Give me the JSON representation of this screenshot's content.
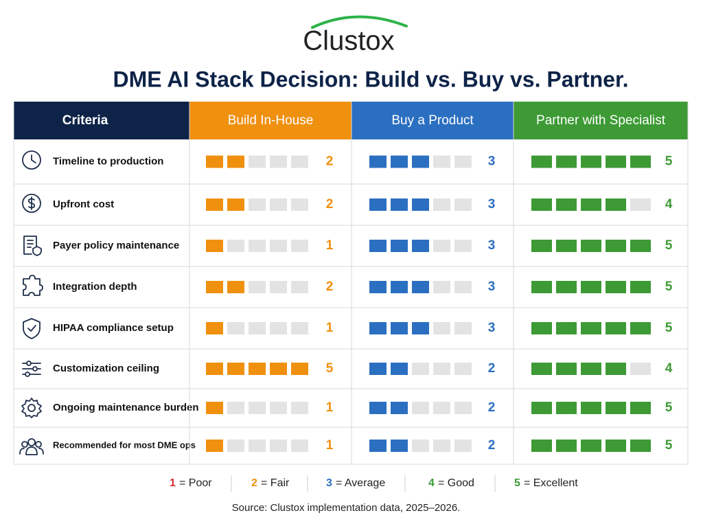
{
  "logo": "Clustox",
  "title": "DME AI Stack Decision: Build vs. Buy vs. Partner.",
  "table": {
    "headers": [
      "Criteria",
      "Build In-House",
      "Buy a Product",
      "Partner with Specialist"
    ],
    "colors": [
      "#0e2348",
      "#f0900f",
      "#2b6fc1",
      "#3d9a35"
    ],
    "rows": [
      [
        "Timeline to production",
        2,
        3,
        5
      ],
      [
        "Upfront cost",
        2,
        3,
        4
      ],
      [
        "Payer policy maintenance",
        1,
        3,
        5
      ],
      [
        "Integration depth",
        2,
        3,
        5
      ],
      [
        "HIPAA compliance setup",
        1,
        3,
        5
      ],
      [
        "Customization ceiling",
        5,
        2,
        4
      ],
      [
        "Ongoing maintenance burden",
        1,
        2,
        5
      ],
      [
        "Recommended for most DME ops",
        1,
        2,
        5
      ]
    ]
  },
  "legend": [
    {
      "score": "1",
      "label": "= Poor",
      "color": "#d32f2f"
    },
    {
      "score": "2",
      "label": "= Fair",
      "color": "#f0900f"
    },
    {
      "score": "3",
      "label": "= Average",
      "color": "#2b6fc1"
    },
    {
      "score": "4",
      "label": "= Good",
      "color": "#3d9a35"
    },
    {
      "score": "5",
      "label": "= Excellent",
      "color": "#3d9a35"
    }
  ],
  "source": "Source: Clustox implementation data, 2025–2026."
}
